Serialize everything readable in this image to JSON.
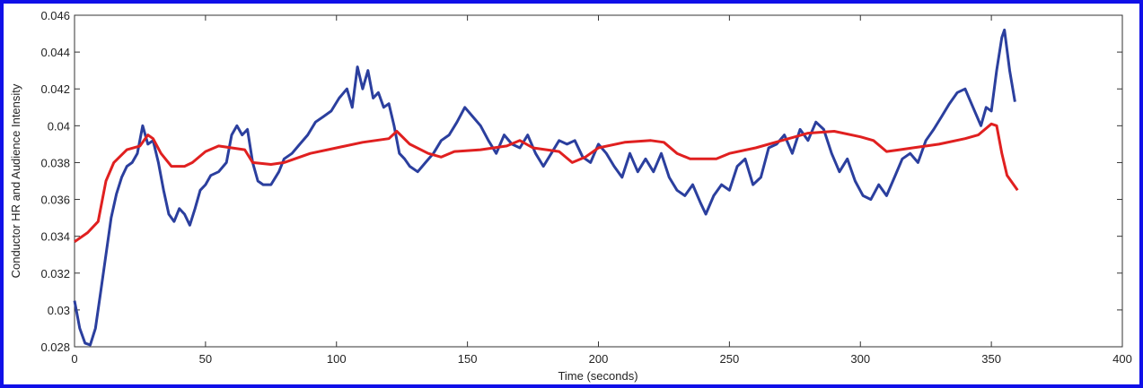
{
  "chart_data": {
    "type": "line",
    "x_label": "Time (seconds)",
    "y_label": "Conductor HR and Audience Intensity",
    "xlim": [
      0,
      400
    ],
    "xticks": [
      0,
      50,
      100,
      150,
      200,
      250,
      300,
      350,
      400
    ],
    "ylim": [
      0.028,
      0.046
    ],
    "yticks": [
      0.028,
      0.03,
      0.032,
      0.034,
      0.036,
      0.038,
      0.04,
      0.042,
      0.044,
      0.046
    ],
    "series": [
      {
        "color": "#2b3f9e",
        "x": [
          0,
          2,
          4,
          6,
          8,
          10,
          12,
          14,
          16,
          18,
          20,
          22,
          24,
          26,
          28,
          30,
          32,
          34,
          36,
          38,
          40,
          42,
          44,
          46,
          48,
          50,
          52,
          55,
          58,
          60,
          62,
          64,
          66,
          68,
          70,
          72,
          75,
          78,
          80,
          83,
          86,
          89,
          92,
          95,
          98,
          101,
          104,
          106,
          108,
          110,
          112,
          114,
          116,
          118,
          120,
          122,
          124,
          126,
          128,
          131,
          134,
          137,
          140,
          143,
          146,
          149,
          152,
          155,
          158,
          161,
          164,
          167,
          170,
          173,
          176,
          179,
          182,
          185,
          188,
          191,
          194,
          197,
          200,
          203,
          206,
          209,
          212,
          215,
          218,
          221,
          224,
          227,
          230,
          233,
          236,
          239,
          241,
          244,
          247,
          250,
          253,
          256,
          259,
          262,
          265,
          268,
          271,
          274,
          277,
          280,
          283,
          286,
          289,
          292,
          295,
          298,
          301,
          304,
          307,
          310,
          313,
          316,
          319,
          322,
          325,
          328,
          331,
          334,
          337,
          340,
          343,
          346,
          348,
          350,
          352,
          354,
          355,
          357,
          359
        ],
        "values": [
          0.0305,
          0.029,
          0.0282,
          0.0281,
          0.029,
          0.031,
          0.033,
          0.035,
          0.0363,
          0.0372,
          0.0378,
          0.038,
          0.0385,
          0.04,
          0.039,
          0.0392,
          0.038,
          0.0365,
          0.0352,
          0.0348,
          0.0355,
          0.0352,
          0.0346,
          0.0355,
          0.0365,
          0.0368,
          0.0373,
          0.0375,
          0.038,
          0.0395,
          0.04,
          0.0395,
          0.0398,
          0.038,
          0.037,
          0.0368,
          0.0368,
          0.0375,
          0.0382,
          0.0385,
          0.039,
          0.0395,
          0.0402,
          0.0405,
          0.0408,
          0.0415,
          0.042,
          0.041,
          0.0432,
          0.042,
          0.043,
          0.0415,
          0.0418,
          0.041,
          0.0412,
          0.04,
          0.0385,
          0.0382,
          0.0378,
          0.0375,
          0.038,
          0.0385,
          0.0392,
          0.0395,
          0.0402,
          0.041,
          0.0405,
          0.04,
          0.0392,
          0.0385,
          0.0395,
          0.039,
          0.0388,
          0.0395,
          0.0385,
          0.0378,
          0.0385,
          0.0392,
          0.039,
          0.0392,
          0.0383,
          0.038,
          0.039,
          0.0385,
          0.0378,
          0.0372,
          0.0385,
          0.0375,
          0.0382,
          0.0375,
          0.0385,
          0.0372,
          0.0365,
          0.0362,
          0.0368,
          0.0358,
          0.0352,
          0.0362,
          0.0368,
          0.0365,
          0.0378,
          0.0382,
          0.0368,
          0.0372,
          0.0388,
          0.039,
          0.0395,
          0.0385,
          0.0398,
          0.0392,
          0.0402,
          0.0398,
          0.0385,
          0.0375,
          0.0382,
          0.037,
          0.0362,
          0.036,
          0.0368,
          0.0362,
          0.0372,
          0.0382,
          0.0385,
          0.038,
          0.0392,
          0.0398,
          0.0405,
          0.0412,
          0.0418,
          0.042,
          0.041,
          0.04,
          0.041,
          0.0408,
          0.043,
          0.0448,
          0.0452,
          0.043,
          0.0413
        ]
      },
      {
        "color": "#e02020",
        "x": [
          0,
          5,
          9,
          12,
          15,
          20,
          25,
          28,
          30,
          33,
          37,
          42,
          45,
          50,
          55,
          60,
          65,
          68,
          75,
          80,
          90,
          100,
          110,
          120,
          123,
          128,
          135,
          140,
          145,
          155,
          165,
          170,
          175,
          185,
          190,
          195,
          200,
          210,
          220,
          225,
          230,
          235,
          245,
          250,
          260,
          270,
          280,
          290,
          300,
          305,
          310,
          315,
          320,
          330,
          340,
          345,
          350,
          352,
          354,
          356,
          360
        ],
        "values": [
          0.0337,
          0.0342,
          0.0348,
          0.037,
          0.038,
          0.0387,
          0.0389,
          0.0395,
          0.0393,
          0.0385,
          0.0378,
          0.0378,
          0.038,
          0.0386,
          0.0389,
          0.0388,
          0.0387,
          0.038,
          0.0379,
          0.038,
          0.0385,
          0.0388,
          0.0391,
          0.0393,
          0.0397,
          0.039,
          0.0385,
          0.0383,
          0.0386,
          0.0387,
          0.0389,
          0.0392,
          0.0388,
          0.0386,
          0.038,
          0.0383,
          0.0388,
          0.0391,
          0.0392,
          0.0391,
          0.0385,
          0.0382,
          0.0382,
          0.0385,
          0.0388,
          0.0392,
          0.0396,
          0.0397,
          0.0394,
          0.0392,
          0.0386,
          0.0387,
          0.0388,
          0.039,
          0.0393,
          0.0395,
          0.0401,
          0.04,
          0.0385,
          0.0373,
          0.0365
        ]
      }
    ]
  }
}
